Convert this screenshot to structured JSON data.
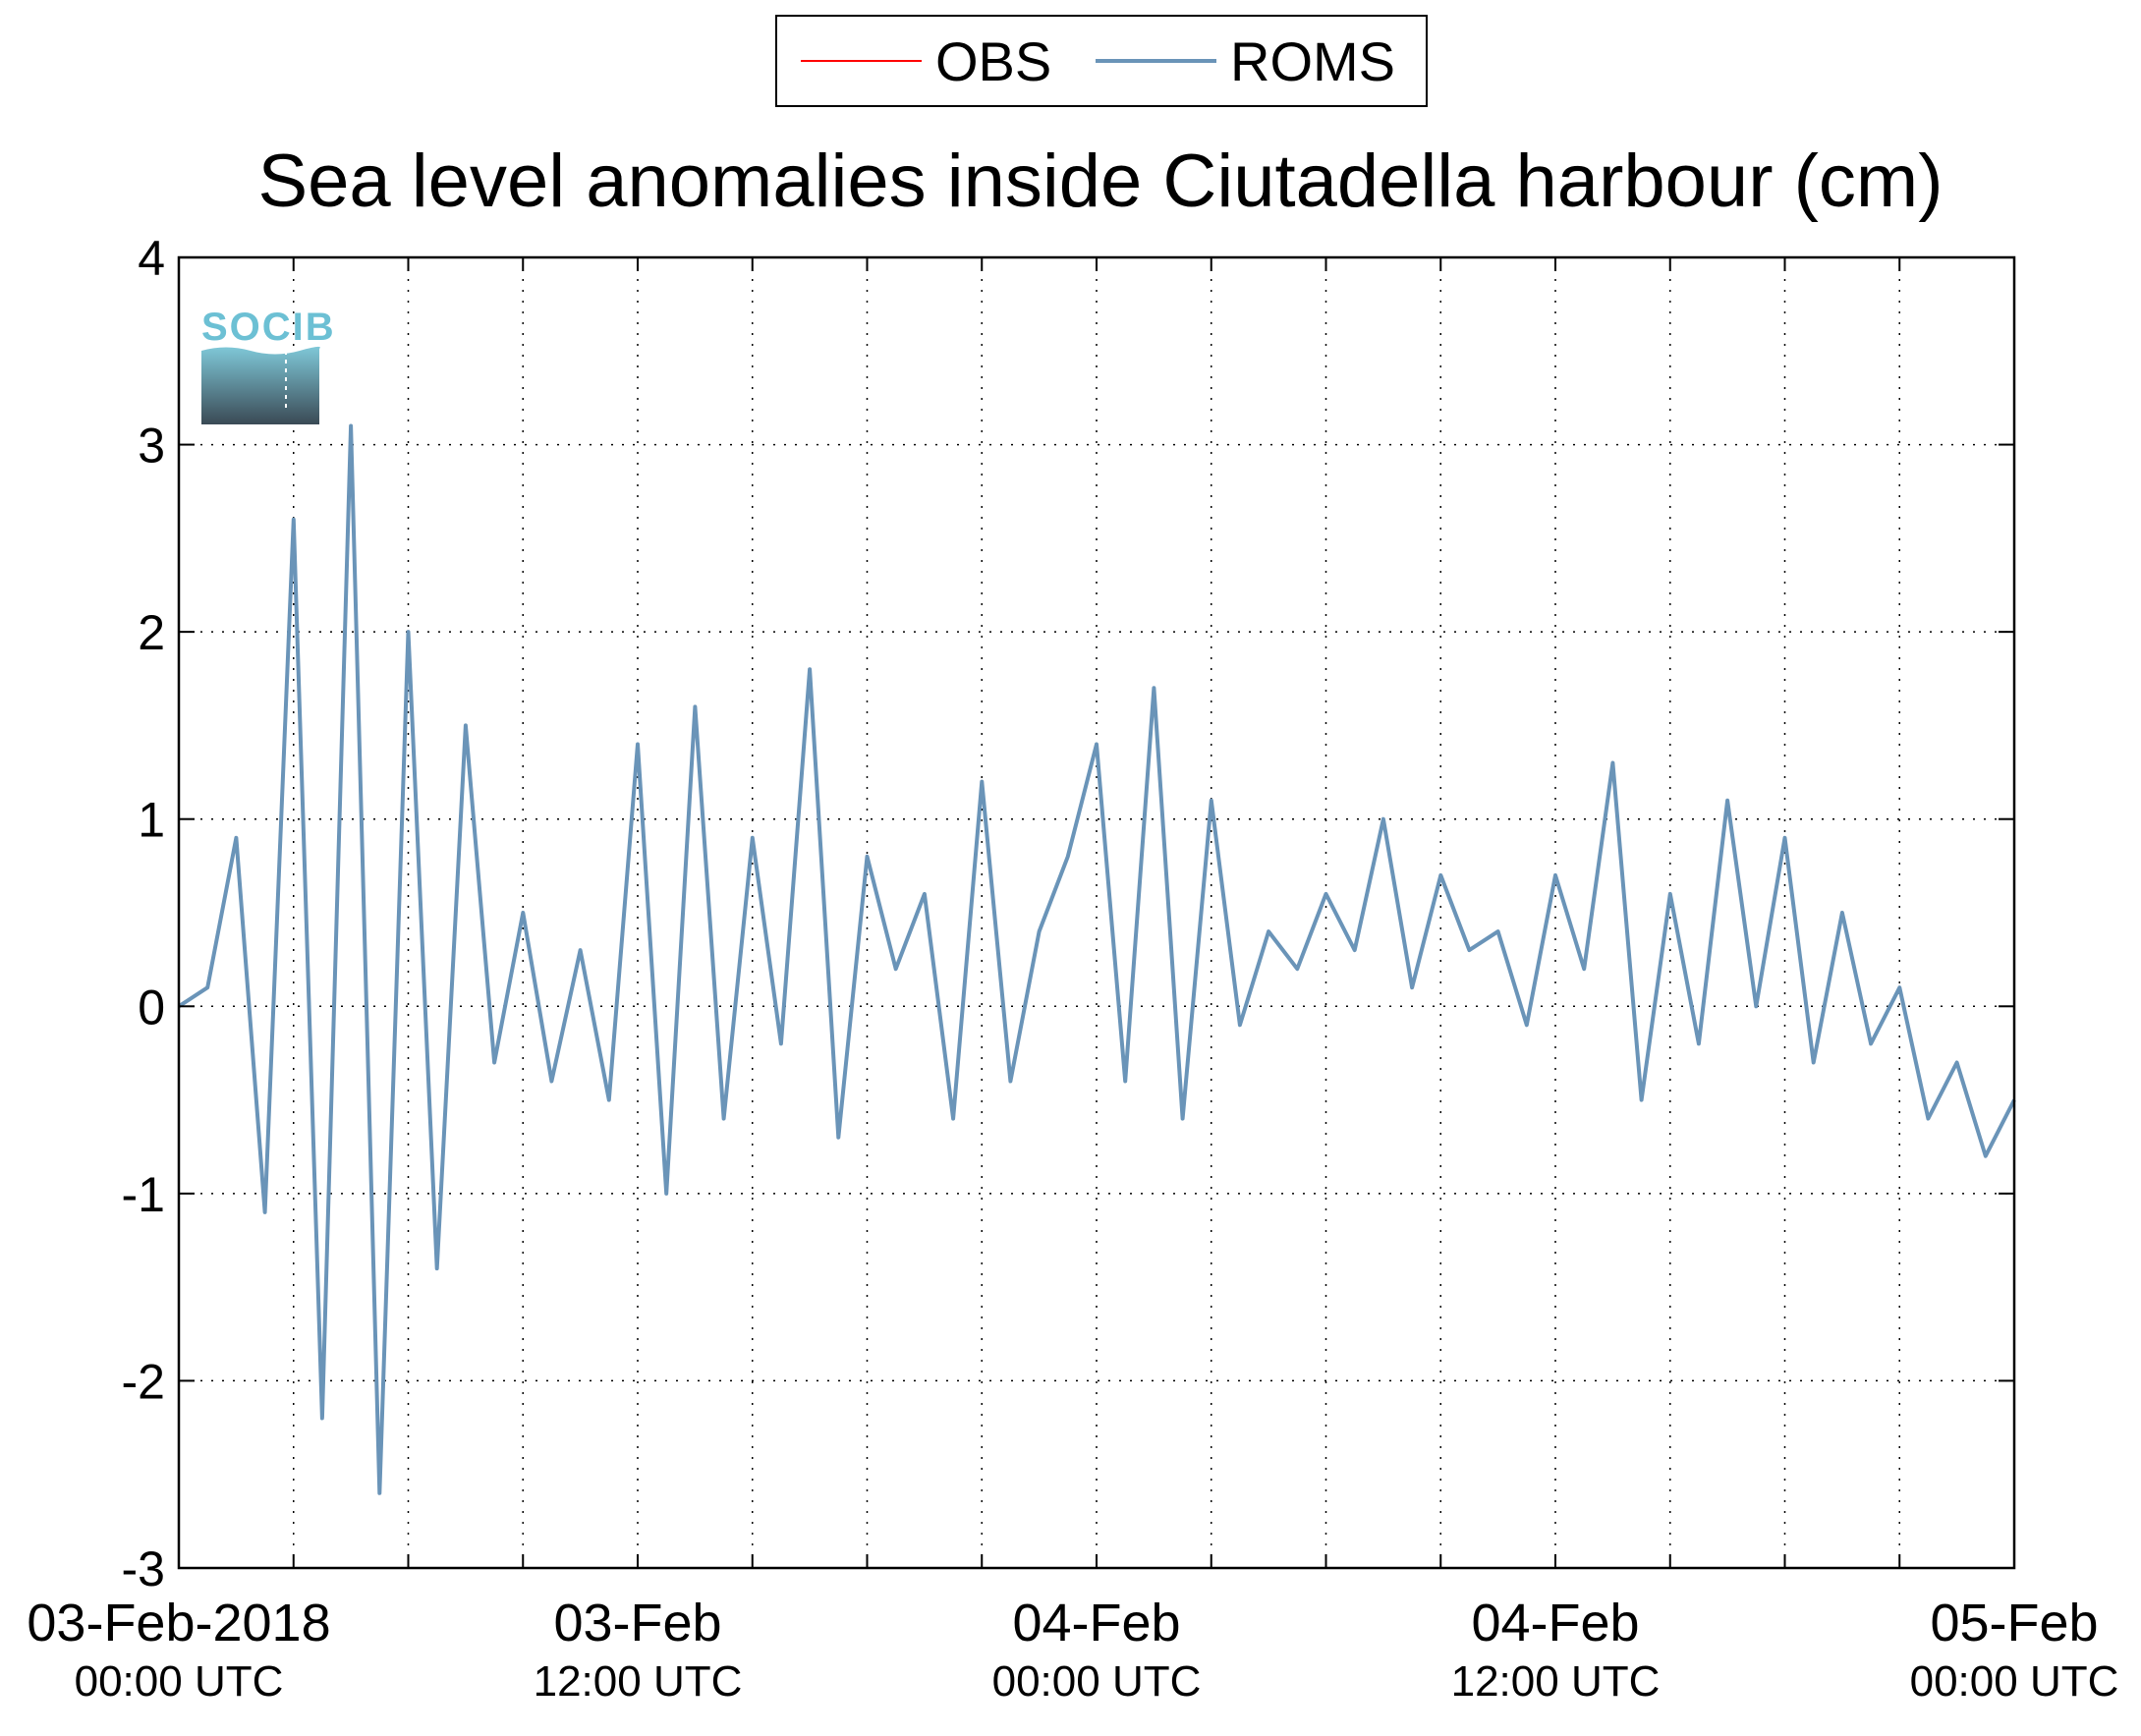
{
  "chart_data": {
    "type": "line",
    "title": "Sea level anomalies inside Ciutadella harbour (cm)",
    "xlabel": "",
    "ylabel": "",
    "xlim": [
      "2018-02-03T00:00Z",
      "2018-02-05T00:00Z"
    ],
    "ylim": [
      -3,
      4
    ],
    "grid": true,
    "legend": "top-center",
    "y_ticks": [
      "-3",
      "-2",
      "-1",
      "0",
      "1",
      "2",
      "3",
      "4"
    ],
    "x_tick_labels": [
      {
        "t": "2018-02-03T00:00Z",
        "date": "03-Feb-2018",
        "time": "00:00 UTC"
      },
      {
        "t": "2018-02-03T12:00Z",
        "date": "03-Feb",
        "time": "12:00 UTC"
      },
      {
        "t": "2018-02-04T00:00Z",
        "date": "04-Feb",
        "time": "00:00 UTC"
      },
      {
        "t": "2018-02-04T12:00Z",
        "date": "04-Feb",
        "time": "12:00 UTC"
      },
      {
        "t": "2018-02-05T00:00Z",
        "date": "05-Feb",
        "time": "00:00 UTC"
      }
    ],
    "series": [
      {
        "name": "OBS",
        "color": "#ff0000",
        "x": [],
        "y": []
      },
      {
        "name": "ROMS",
        "color": "#6a94b8",
        "x": [
          "2018-02-03T00:00Z",
          "2018-02-03T00:45Z",
          "2018-02-03T01:30Z",
          "2018-02-03T02:15Z",
          "2018-02-03T03:00Z",
          "2018-02-03T03:45Z",
          "2018-02-03T04:30Z",
          "2018-02-03T05:15Z",
          "2018-02-03T06:00Z",
          "2018-02-03T06:45Z",
          "2018-02-03T07:30Z",
          "2018-02-03T08:15Z",
          "2018-02-03T09:00Z",
          "2018-02-03T09:45Z",
          "2018-02-03T10:30Z",
          "2018-02-03T11:15Z",
          "2018-02-03T12:00Z",
          "2018-02-03T12:45Z",
          "2018-02-03T13:30Z",
          "2018-02-03T14:15Z",
          "2018-02-03T15:00Z",
          "2018-02-03T15:45Z",
          "2018-02-03T16:30Z",
          "2018-02-03T17:15Z",
          "2018-02-03T18:00Z",
          "2018-02-03T18:45Z",
          "2018-02-03T19:30Z",
          "2018-02-03T20:15Z",
          "2018-02-03T21:00Z",
          "2018-02-03T21:45Z",
          "2018-02-03T22:30Z",
          "2018-02-03T23:15Z",
          "2018-02-04T00:00Z",
          "2018-02-04T00:45Z",
          "2018-02-04T01:30Z",
          "2018-02-04T02:15Z",
          "2018-02-04T03:00Z",
          "2018-02-04T03:45Z",
          "2018-02-04T04:30Z",
          "2018-02-04T05:15Z",
          "2018-02-04T06:00Z",
          "2018-02-04T06:45Z",
          "2018-02-04T07:30Z",
          "2018-02-04T08:15Z",
          "2018-02-04T09:00Z",
          "2018-02-04T09:45Z",
          "2018-02-04T10:30Z",
          "2018-02-04T11:15Z",
          "2018-02-04T12:00Z",
          "2018-02-04T12:45Z",
          "2018-02-04T13:30Z",
          "2018-02-04T14:15Z",
          "2018-02-04T15:00Z",
          "2018-02-04T15:45Z",
          "2018-02-04T16:30Z",
          "2018-02-04T17:15Z",
          "2018-02-04T18:00Z",
          "2018-02-04T18:45Z",
          "2018-02-04T19:30Z",
          "2018-02-04T20:15Z",
          "2018-02-04T21:00Z",
          "2018-02-04T21:45Z",
          "2018-02-04T22:30Z",
          "2018-02-04T23:15Z",
          "2018-02-05T00:00Z"
        ],
        "y": [
          0.0,
          0.1,
          0.9,
          -1.1,
          2.6,
          -2.2,
          3.1,
          -2.6,
          2.0,
          -1.4,
          1.5,
          -0.3,
          0.5,
          -0.4,
          0.3,
          -0.5,
          1.4,
          -1.0,
          1.6,
          -0.6,
          0.9,
          -0.2,
          1.8,
          -0.7,
          0.8,
          0.2,
          0.6,
          -0.6,
          1.2,
          -0.4,
          0.4,
          0.8,
          1.4,
          -0.4,
          1.7,
          -0.6,
          1.1,
          -0.1,
          0.4,
          0.2,
          0.6,
          0.3,
          1.0,
          0.1,
          0.7,
          0.3,
          0.4,
          -0.1,
          0.7,
          0.2,
          1.3,
          -0.5,
          0.6,
          -0.2,
          1.1,
          0.0,
          0.9,
          -0.3,
          0.5,
          -0.2,
          0.1,
          -0.6,
          -0.3,
          -0.8,
          -0.5
        ]
      }
    ]
  },
  "logo": {
    "text": "SOCIB"
  }
}
